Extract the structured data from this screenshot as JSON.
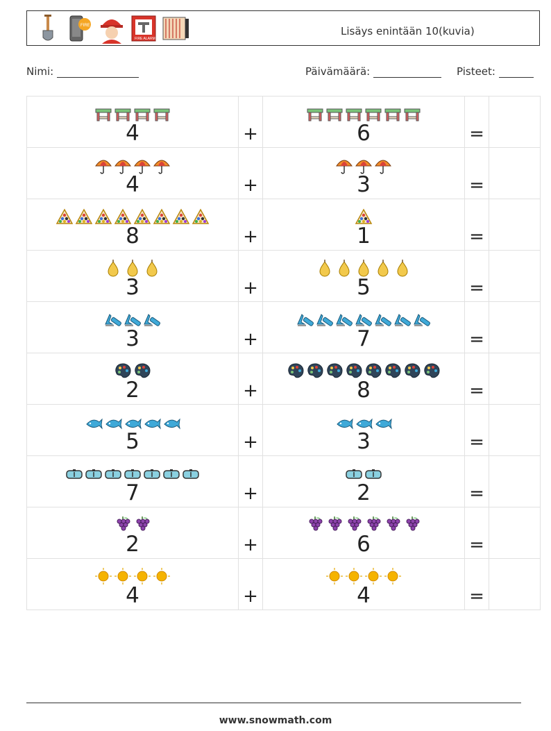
{
  "header": {
    "title": "Lisäys enintään 10(kuvia)",
    "icons": [
      "shovel-icon",
      "phone-fire-icon",
      "firefighter-icon",
      "fire-alarm-icon",
      "fire-hose-icon"
    ]
  },
  "info": {
    "name_label": "Nimi:",
    "date_label": "Päivämäärä:",
    "score_label": "Pisteet:"
  },
  "operators": {
    "plus": "+",
    "equals": "="
  },
  "rows": [
    {
      "icon": "table-icon",
      "a": "4",
      "b": "6"
    },
    {
      "icon": "umbrella-icon",
      "a": "4",
      "b": "3"
    },
    {
      "icon": "billiards-icon",
      "a": "8",
      "b": "1"
    },
    {
      "icon": "pear-icon",
      "a": "3",
      "b": "5"
    },
    {
      "icon": "tube-icon",
      "a": "3",
      "b": "7"
    },
    {
      "icon": "palette-icon",
      "a": "2",
      "b": "8"
    },
    {
      "icon": "fish-icon",
      "a": "5",
      "b": "3"
    },
    {
      "icon": "goggles-icon",
      "a": "7",
      "b": "2"
    },
    {
      "icon": "grapes-icon",
      "a": "2",
      "b": "6"
    },
    {
      "icon": "sun-icon",
      "a": "4",
      "b": "4"
    }
  ],
  "footer": {
    "url": "www.snowmath.com"
  }
}
